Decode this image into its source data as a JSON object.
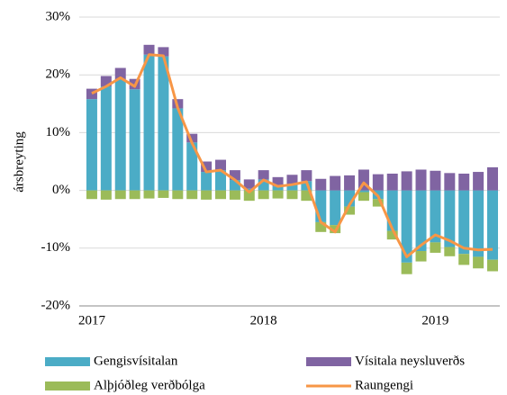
{
  "chart_data": {
    "type": "bar",
    "y_label": "ársbreyting",
    "categories": [
      "2017",
      null,
      null,
      null,
      null,
      null,
      null,
      null,
      null,
      null,
      null,
      null,
      "2018",
      null,
      null,
      null,
      null,
      null,
      null,
      null,
      null,
      null,
      null,
      null,
      "2019",
      null,
      null,
      null,
      null
    ],
    "ylim": [
      -20,
      30
    ],
    "yticks": [
      {
        "value": -20,
        "label": "-20%"
      },
      {
        "value": -10,
        "label": "-10%"
      },
      {
        "value": 0,
        "label": "0%"
      },
      {
        "value": 10,
        "label": "10%"
      },
      {
        "value": 20,
        "label": "20%"
      },
      {
        "value": 30,
        "label": "30%"
      }
    ],
    "grid": true,
    "stacked": true,
    "series": [
      {
        "name": "Gengisvísitalan",
        "color": "#4bacc6",
        "values": [
          15.8,
          18.0,
          19.2,
          17.5,
          23.5,
          23.2,
          14.2,
          8.3,
          3.2,
          3.5,
          1.8,
          0.3,
          1.9,
          0.7,
          1.0,
          1.6,
          -5.5,
          -6.0,
          -2.8,
          -0.3,
          -1.5,
          -7.0,
          -12.5,
          -10.5,
          -9.0,
          -9.8,
          -11.0,
          -11.5,
          -12.0
        ]
      },
      {
        "name": "Vísitala neysluverðs",
        "color": "#8064a2",
        "values": [
          1.8,
          1.8,
          2.0,
          1.8,
          1.7,
          1.6,
          1.6,
          1.5,
          1.8,
          1.8,
          1.7,
          1.6,
          1.6,
          1.6,
          1.7,
          1.9,
          2.0,
          2.5,
          2.6,
          3.6,
          2.8,
          2.9,
          3.3,
          3.6,
          3.4,
          3.0,
          2.9,
          3.2,
          4.0
        ]
      },
      {
        "name": "Alþjóðleg verðbólga",
        "color": "#9bbb59",
        "values": [
          -1.5,
          -1.6,
          -1.5,
          -1.5,
          -1.4,
          -1.3,
          -1.5,
          -1.5,
          -1.6,
          -1.5,
          -1.6,
          -1.8,
          -1.5,
          -1.4,
          -1.5,
          -1.8,
          -1.7,
          -1.4,
          -1.4,
          -1.5,
          -1.3,
          -1.5,
          -2.0,
          -1.8,
          -1.8,
          -1.6,
          -1.9,
          -2.0,
          -2.0
        ]
      },
      {
        "name": "Raungengi",
        "type": "line",
        "color": "#f79646",
        "values": [
          16.8,
          18.0,
          19.5,
          18.0,
          23.5,
          23.3,
          14.3,
          8.2,
          3.2,
          3.5,
          1.8,
          -0.3,
          1.8,
          0.7,
          1.0,
          1.5,
          -5.5,
          -7.2,
          -2.5,
          1.3,
          -1.0,
          -6.7,
          -11.5,
          -9.5,
          -7.7,
          -8.7,
          -10.0,
          -10.3,
          -10.2
        ]
      }
    ]
  }
}
